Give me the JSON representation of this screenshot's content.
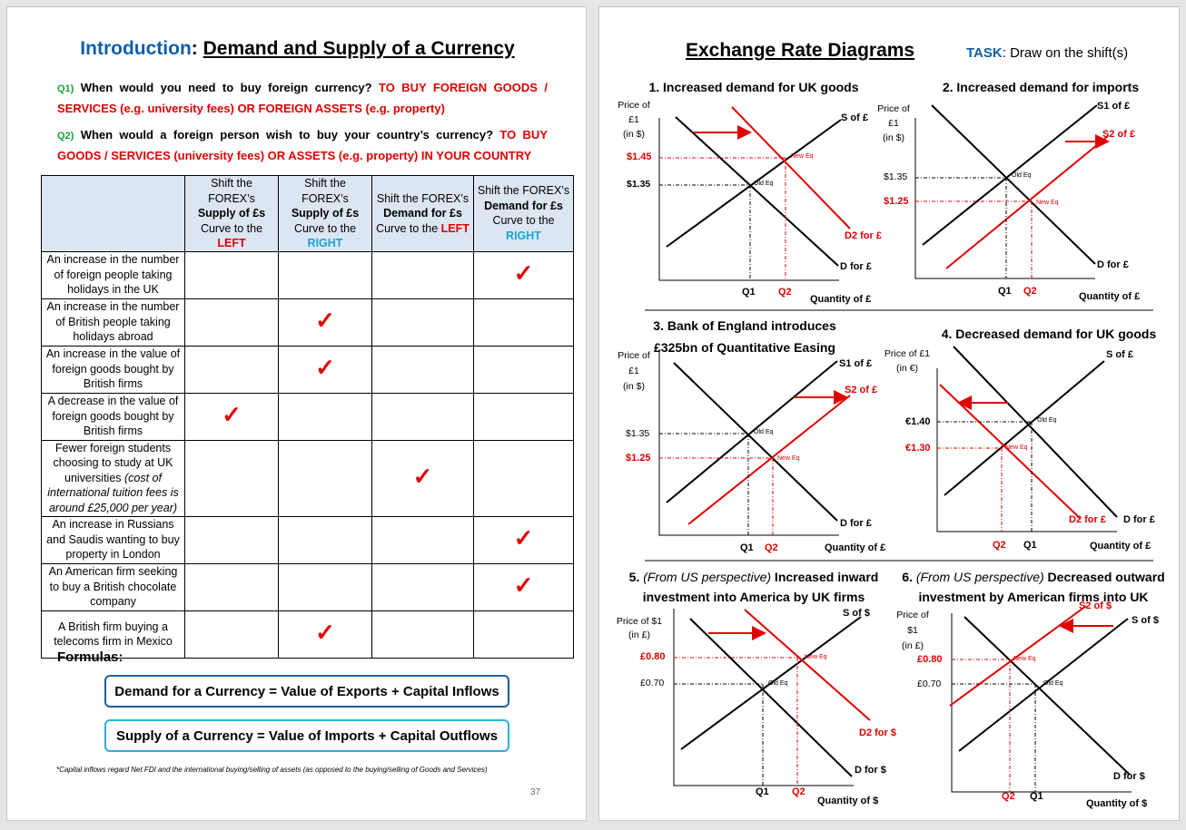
{
  "left": {
    "title_blue": "Introduction",
    "title_colon": ": ",
    "title_main": "Demand and Supply of a Currency",
    "q1_num": "Q1)",
    "q1_text": " When would you need to buy foreign currency? ",
    "q1_answer": "TO BUY FOREIGN GOODS / SERVICES (e.g. university fees) OR FOREIGN ASSETS (e.g. property)",
    "q2_num": "Q2)",
    "q2_text": " When would a foreign person wish to buy your country’s currency? ",
    "q2_answer": "TO BUY GOODS / SERVICES (university fees) OR ASSETS (e.g. property) IN YOUR COUNTRY",
    "headers": [
      {
        "a": "Shift the FOREX’s ",
        "b": "Supply of £s",
        "c": " Curve to the ",
        "d": "LEFT"
      },
      {
        "a": "Shift the FOREX’s ",
        "b": "Supply of £s",
        "c": " Curve to the ",
        "d": "RIGHT"
      },
      {
        "a": "Shift the FOREX’s ",
        "b": "Demand for £s",
        "c": " Curve to the ",
        "d": "LEFT"
      },
      {
        "a": "Shift the FOREX’s ",
        "b": "Demand for £s",
        "c": " Curve to the ",
        "d": "RIGHT"
      }
    ],
    "rows": [
      {
        "text": "An increase in the number of foreign people taking holidays in the UK",
        "note": "",
        "tick": 3
      },
      {
        "text": "An increase in the number of British people taking holidays abroad",
        "note": "",
        "tick": 1
      },
      {
        "text": "An increase in the value of foreign goods bought by British firms",
        "note": "",
        "tick": 1
      },
      {
        "text": "A decrease in the value of foreign goods bought by British firms",
        "note": "",
        "tick": 0
      },
      {
        "text": "Fewer foreign students choosing to study at UK universities ",
        "note": "(cost of international tuition fees is around £25,000 per year)",
        "tick": 2
      },
      {
        "text": "An increase in Russians and Saudis wanting to buy property in London",
        "note": "",
        "tick": 3
      },
      {
        "text": "An American firm seeking to buy a British chocolate company",
        "note": "",
        "tick": 3
      },
      {
        "text": "A British firm buying a telecoms firm in Mexico",
        "note": "",
        "tick": 1
      }
    ],
    "tick_symbol": "✓",
    "formulas_label": "Formulas:",
    "formula_demand": "Demand for a Currency = Value of Exports + Capital Inflows",
    "formula_supply": "Supply of a Currency = Value of Imports + Capital Outflows",
    "footnote": "*Capital inflows regard Net FDI and the international buying/selling of assets (as opposed to the buying/selling of Goods and Services)",
    "page_number": "37"
  },
  "right": {
    "title": "Exchange Rate Diagrams",
    "task_label": "TASK",
    "task_text": ": Draw on the shift(s)",
    "c1_title": "1. Increased demand for UK goods",
    "c1_ylabel": [
      "Price of",
      "£1",
      "(in $)"
    ],
    "c1_p_new": "$1.45",
    "c1_p_old": "$1.35",
    "c1_s": "S of £",
    "c1_d2": "D2 for £",
    "c1_d": "D for £",
    "c1_q1": "Q1",
    "c1_q2": "Q2",
    "c1_x": "Quantity of £",
    "c2_title": "2. Increased demand for imports",
    "c2_ylabel": [
      "Price of",
      "£1",
      "(in $)"
    ],
    "c2_p_old": "$1.35",
    "c2_p_new": "$1.25",
    "c2_s1": "S1 of £",
    "c2_s2": "S2 of £",
    "c2_d": "D for £",
    "c2_q1": "Q1",
    "c2_q2": "Q2",
    "c2_x": "Quantity of £",
    "c3_title_1": "3. Bank of England introduces",
    "c3_title_2": "£325bn of Quantitative Easing",
    "c3_ylabel": [
      "Price of",
      "£1",
      "(in $)"
    ],
    "c3_p_old": "$1.35",
    "c3_p_new": "$1.25",
    "c3_s1": "S1 of £",
    "c3_s2": "S2 of £",
    "c3_d": "D for £",
    "c3_q1": "Q1",
    "c3_q2": "Q2",
    "c3_x": "Quantity of £",
    "c4_title": "4. Decreased demand for UK goods",
    "c4_ylabel": [
      "Price of £1",
      "(in €)"
    ],
    "c4_p_old": "€1.40",
    "c4_p_new": "€1.30",
    "c4_s": "S of £",
    "c4_d2": "D2 for £",
    "c4_d": "D for £",
    "c4_q2": "Q2",
    "c4_q1": "Q1",
    "c4_x": "Quantity of £",
    "c5_prefix": "5. ",
    "c5_italic": "(From US perspective)",
    "c5_rest": " Increased inward",
    "c5_title_2": "investment into America by UK firms",
    "c5_ylabel": [
      "Price of $1",
      "(in £)"
    ],
    "c5_p_new": "£0.80",
    "c5_p_old": "£0.70",
    "c5_s": "S of $",
    "c5_d2": "D2 for $",
    "c5_d": "D for $",
    "c5_q1": "Q1",
    "c5_q2": "Q2",
    "c5_x": "Quantity of $",
    "c6_prefix": "6. ",
    "c6_italic": "(From US perspective)",
    "c6_rest": " Decreased outward",
    "c6_title_2": "investment by American firms into UK",
    "c6_ylabel": [
      "Price of",
      "$1",
      "(in £)"
    ],
    "c6_p_new": "£0.80",
    "c6_p_old": "£0.70",
    "c6_s": "S of $",
    "c6_s2": "S2 of $",
    "c6_d": "D for $",
    "c6_q2": "Q2",
    "c6_q1": "Q1",
    "c6_x": "Quantity of $",
    "old_eq": "Old Eq",
    "new_eq": "New Eq"
  }
}
